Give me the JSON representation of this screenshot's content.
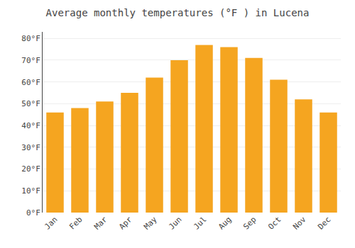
{
  "chart_data": {
    "type": "bar",
    "title": "Average monthly temperatures (°F ) in Lucena",
    "categories": [
      "Jan",
      "Feb",
      "Mar",
      "Apr",
      "May",
      "Jun",
      "Jul",
      "Aug",
      "Sep",
      "Oct",
      "Nov",
      "Dec"
    ],
    "values": [
      46,
      48,
      51,
      55,
      62,
      70,
      77,
      76,
      71,
      61,
      52,
      46
    ],
    "color": "#F5A520",
    "ylim": [
      0,
      83
    ],
    "yticks": [
      {
        "value": 0,
        "label": "0°F"
      },
      {
        "value": 10,
        "label": "10°F"
      },
      {
        "value": 20,
        "label": "20°F"
      },
      {
        "value": 30,
        "label": "30°F"
      },
      {
        "value": 40,
        "label": "40°F"
      },
      {
        "value": 50,
        "label": "50°F"
      },
      {
        "value": 60,
        "label": "60°F"
      },
      {
        "value": 70,
        "label": "70°F"
      },
      {
        "value": 80,
        "label": "80°F"
      }
    ],
    "grid": true
  }
}
